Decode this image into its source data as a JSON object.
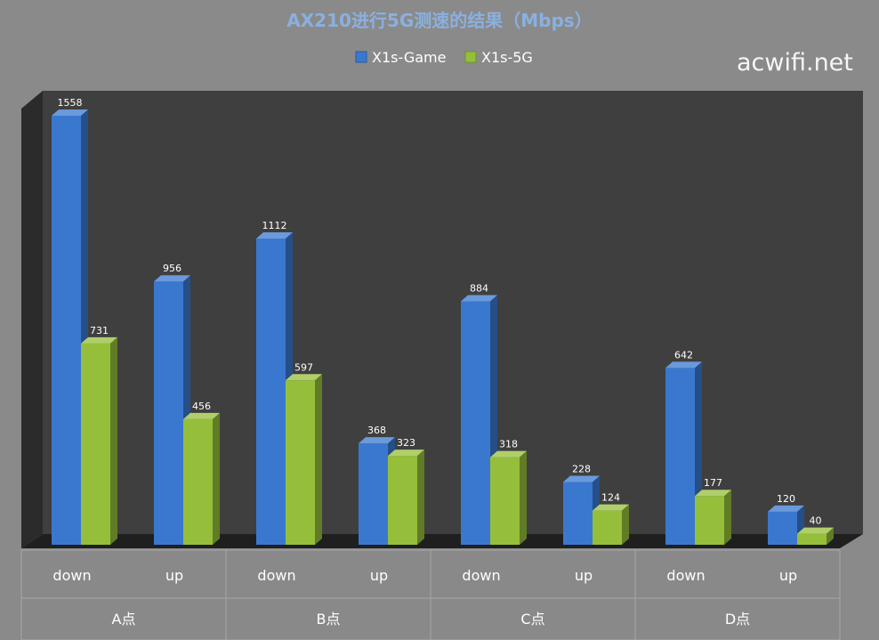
{
  "chart_data": {
    "type": "bar",
    "title": "AX210进行5G测速的结果（Mbps）",
    "groups": [
      "A点",
      "B点",
      "C点",
      "D点"
    ],
    "categories": [
      "down",
      "up",
      "down",
      "up",
      "down",
      "up",
      "down",
      "up"
    ],
    "series": [
      {
        "name": "X1s-Game",
        "color": "#3a78d0",
        "values": [
          1558,
          956,
          1112,
          368,
          884,
          228,
          642,
          120
        ]
      },
      {
        "name": "X1s-5G",
        "color": "#95bf3a",
        "values": [
          731,
          456,
          597,
          323,
          318,
          124,
          177,
          40
        ]
      }
    ],
    "ylim": [
      0,
      1558
    ],
    "grid": false,
    "legend": "top-center",
    "style": "3d-clustered-column"
  },
  "watermark": "acwifi.net",
  "colors": {
    "background": "#8a8a8a",
    "plot_area": "#3f3f3f",
    "plot_wall_side": "#2b2b2b",
    "floor": "#1f1f1f",
    "title": "#8ab0df"
  }
}
